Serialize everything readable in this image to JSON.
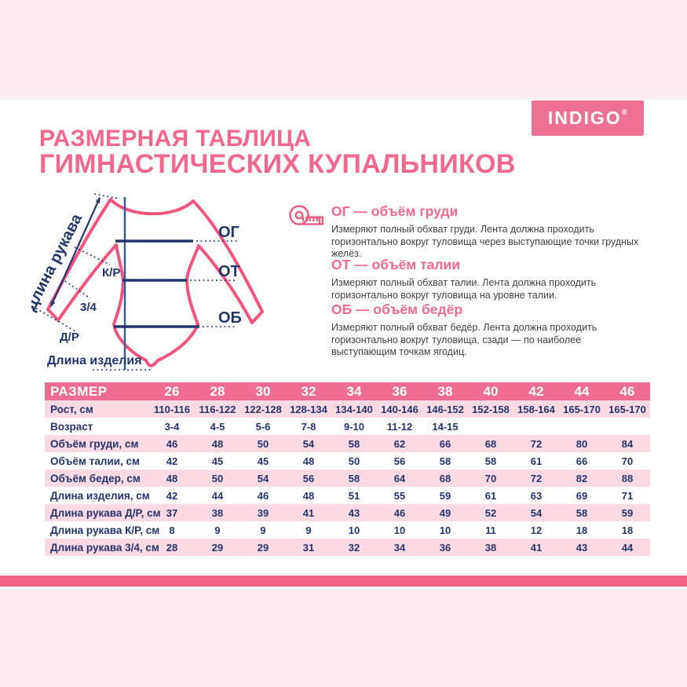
{
  "page": {
    "brand": "INDIGO",
    "brand_mark": "®",
    "title_line1": "РАЗМЕРНАЯ ТАБЛИЦА",
    "title_line2": "ГИМНАСТИЧЕСКИХ КУПАЛЬНИКОВ"
  },
  "diagram": {
    "sleeve_length_label": "Длина рукава",
    "product_length_label": "Длина изделия",
    "mark_kr": "К/Р",
    "mark_34": "3/4",
    "mark_dr": "Д/Р",
    "mark_og": "ОГ",
    "mark_ot": "ОТ",
    "mark_ob": "ОБ"
  },
  "measurements": [
    {
      "title": "ОГ — объём груди",
      "text": "Измеряют полный обхват груди. Лента должна проходить горизонтально вокруг туловища через выступающие точки грудных желёз."
    },
    {
      "title": "ОТ — объём талии",
      "text": "Измеряют полный обхват талии. Лента должна проходить горизонтально вокруг туловища на уровне талии."
    },
    {
      "title": "ОБ — объём бедёр",
      "text": "Измеряют полный обхват бедёр. Лента должна проходить горизонтально вокруг туловища, сзади — по наиболее выступающим точкам ягодиц."
    }
  ],
  "table": {
    "header_label": "РАЗМЕР",
    "sizes": [
      "26",
      "28",
      "30",
      "32",
      "34",
      "36",
      "38",
      "40",
      "42",
      "44",
      "46"
    ],
    "rows": [
      {
        "label": "Рост, см",
        "values": [
          "110-116",
          "116-122",
          "122-128",
          "128-134",
          "134-140",
          "140-146",
          "146-152",
          "152-158",
          "158-164",
          "165-170",
          "165-170"
        ]
      },
      {
        "label": "Возраст",
        "values": [
          "3-4",
          "4-5",
          "5-6",
          "7-8",
          "9-10",
          "11-12",
          "14-15",
          "",
          "",
          "",
          ""
        ]
      },
      {
        "label": "Объём груди, см",
        "values": [
          "46",
          "48",
          "50",
          "54",
          "58",
          "62",
          "66",
          "68",
          "72",
          "80",
          "84"
        ]
      },
      {
        "label": "Объём талии, см",
        "values": [
          "42",
          "45",
          "45",
          "48",
          "50",
          "56",
          "58",
          "58",
          "61",
          "66",
          "70"
        ]
      },
      {
        "label": "Объём бедер, см",
        "values": [
          "48",
          "50",
          "54",
          "56",
          "58",
          "64",
          "68",
          "70",
          "72",
          "82",
          "88"
        ]
      },
      {
        "label": "Длина изделия, см",
        "values": [
          "42",
          "44",
          "46",
          "48",
          "51",
          "55",
          "59",
          "61",
          "63",
          "69",
          "71"
        ]
      },
      {
        "label": "Длина рукава Д/Р, см",
        "values": [
          "37",
          "38",
          "39",
          "41",
          "43",
          "46",
          "49",
          "52",
          "54",
          "58",
          "59"
        ]
      },
      {
        "label": "Длина рукава К/Р, см",
        "values": [
          "8",
          "9",
          "9",
          "9",
          "10",
          "10",
          "10",
          "11",
          "12",
          "18",
          "18"
        ]
      },
      {
        "label": "Длина рукава 3/4, см",
        "values": [
          "28",
          "29",
          "29",
          "31",
          "32",
          "34",
          "36",
          "38",
          "41",
          "43",
          "44"
        ]
      }
    ]
  },
  "colors": {
    "accent_pink": "#f1688e",
    "table_header_pink": "#ee6d93",
    "logo_pink": "#ed7195",
    "leotard_pink": "#f2547e",
    "navy": "#24356b",
    "page_bg": "#fcebf0",
    "row_tint": "#fcdae3",
    "bottom_stripe": "#ef6288",
    "body_text": "#414042",
    "card_bg": "#ffffff"
  }
}
